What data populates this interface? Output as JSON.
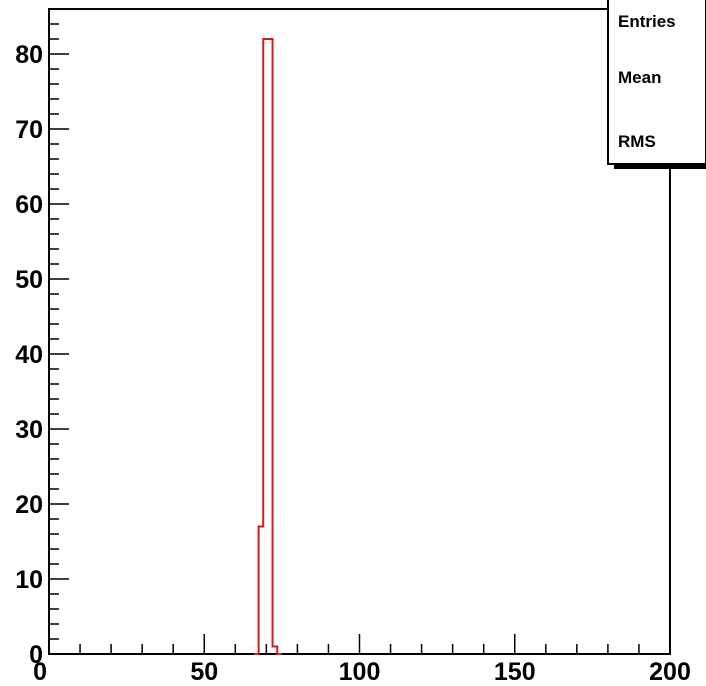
{
  "chart_data": {
    "type": "histogram",
    "title": "",
    "xlabel": "",
    "ylabel": "",
    "xlim": [
      0,
      200
    ],
    "ylim": [
      0,
      86
    ],
    "x_ticks": [
      0,
      50,
      100,
      150,
      200
    ],
    "y_ticks": [
      0,
      10,
      20,
      30,
      40,
      50,
      60,
      70,
      80
    ],
    "bin_edges": [
      66,
      67.5,
      69,
      70.5,
      72,
      73.5,
      75
    ],
    "counts": [
      0,
      17,
      82,
      82,
      1,
      0
    ],
    "line_color": "#cc1f1f",
    "grid": false,
    "stats_box": {
      "placement": "top-right",
      "labels": [
        "Entries",
        "Mean",
        "RMS"
      ]
    }
  }
}
